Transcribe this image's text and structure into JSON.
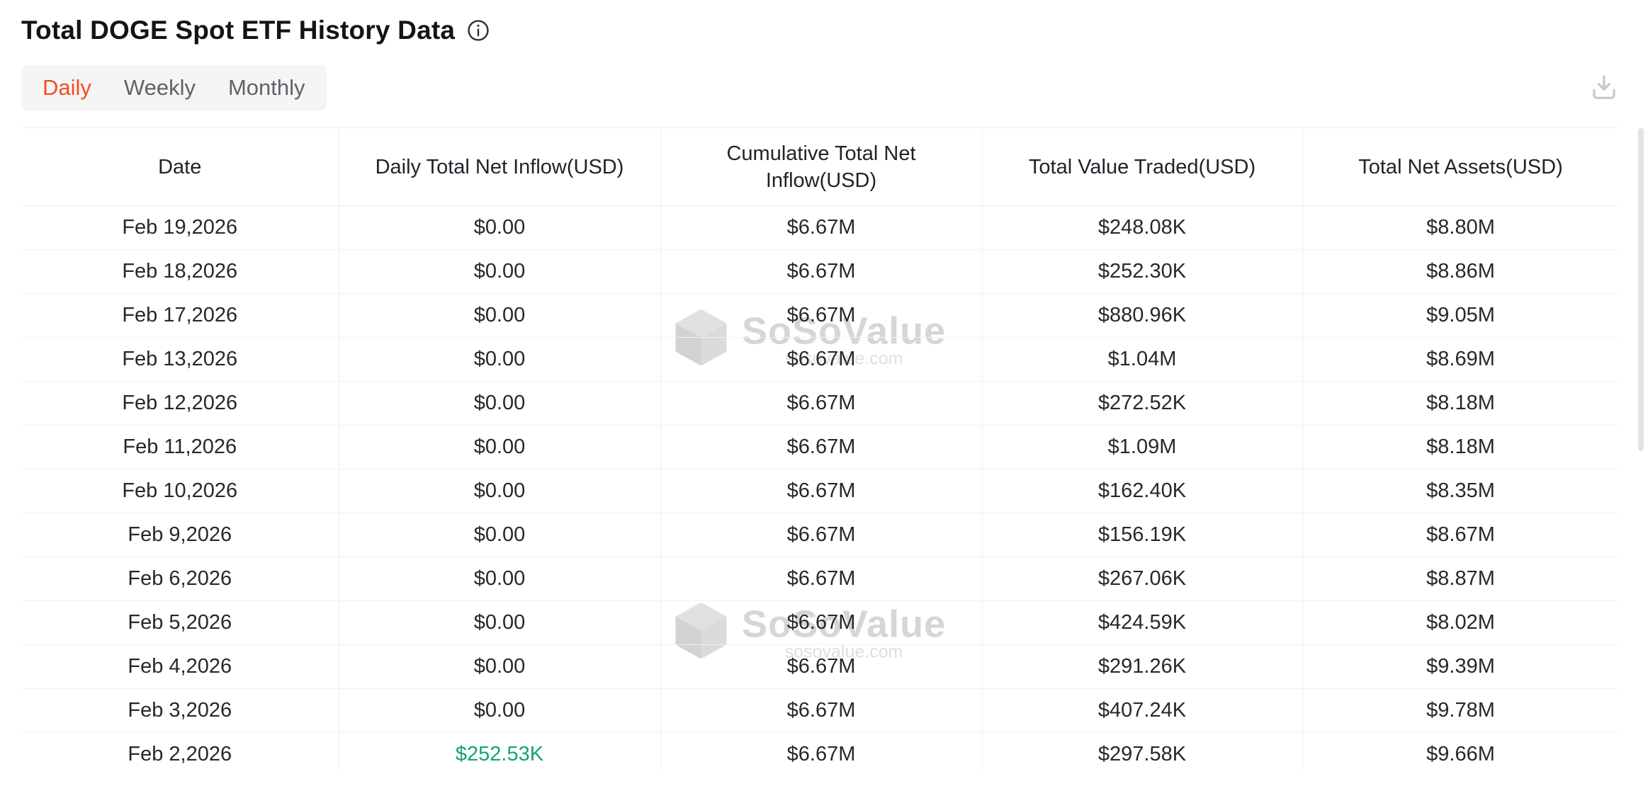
{
  "header": {
    "title": "Total DOGE Spot ETF History Data",
    "tabs": [
      {
        "label": "Daily",
        "active": true
      },
      {
        "label": "Weekly",
        "active": false
      },
      {
        "label": "Monthly",
        "active": false
      }
    ]
  },
  "icons": {
    "info": "info-icon",
    "download": "download-icon",
    "watermark_cube": "sosovalue-cube-icon"
  },
  "colors": {
    "accent": "#f04e23",
    "positive": "#15a470",
    "watermark": "#d3d3d5"
  },
  "watermark": {
    "brand": "SoSoValue",
    "domain": "sosovalue.com"
  },
  "table": {
    "columns": [
      "Date",
      "Daily Total Net Inflow(USD)",
      "Cumulative Total Net Inflow(USD)",
      "Total Value Traded(USD)",
      "Total Net Assets(USD)"
    ],
    "rows": [
      {
        "date": "Feb 19,2026",
        "daily_inflow": "$0.00",
        "daily_inflow_positive": false,
        "cumulative_inflow": "$6.67M",
        "value_traded": "$248.08K",
        "net_assets": "$8.80M"
      },
      {
        "date": "Feb 18,2026",
        "daily_inflow": "$0.00",
        "daily_inflow_positive": false,
        "cumulative_inflow": "$6.67M",
        "value_traded": "$252.30K",
        "net_assets": "$8.86M"
      },
      {
        "date": "Feb 17,2026",
        "daily_inflow": "$0.00",
        "daily_inflow_positive": false,
        "cumulative_inflow": "$6.67M",
        "value_traded": "$880.96K",
        "net_assets": "$9.05M"
      },
      {
        "date": "Feb 13,2026",
        "daily_inflow": "$0.00",
        "daily_inflow_positive": false,
        "cumulative_inflow": "$6.67M",
        "value_traded": "$1.04M",
        "net_assets": "$8.69M"
      },
      {
        "date": "Feb 12,2026",
        "daily_inflow": "$0.00",
        "daily_inflow_positive": false,
        "cumulative_inflow": "$6.67M",
        "value_traded": "$272.52K",
        "net_assets": "$8.18M"
      },
      {
        "date": "Feb 11,2026",
        "daily_inflow": "$0.00",
        "daily_inflow_positive": false,
        "cumulative_inflow": "$6.67M",
        "value_traded": "$1.09M",
        "net_assets": "$8.18M"
      },
      {
        "date": "Feb 10,2026",
        "daily_inflow": "$0.00",
        "daily_inflow_positive": false,
        "cumulative_inflow": "$6.67M",
        "value_traded": "$162.40K",
        "net_assets": "$8.35M"
      },
      {
        "date": "Feb 9,2026",
        "daily_inflow": "$0.00",
        "daily_inflow_positive": false,
        "cumulative_inflow": "$6.67M",
        "value_traded": "$156.19K",
        "net_assets": "$8.67M"
      },
      {
        "date": "Feb 6,2026",
        "daily_inflow": "$0.00",
        "daily_inflow_positive": false,
        "cumulative_inflow": "$6.67M",
        "value_traded": "$267.06K",
        "net_assets": "$8.87M"
      },
      {
        "date": "Feb 5,2026",
        "daily_inflow": "$0.00",
        "daily_inflow_positive": false,
        "cumulative_inflow": "$6.67M",
        "value_traded": "$424.59K",
        "net_assets": "$8.02M"
      },
      {
        "date": "Feb 4,2026",
        "daily_inflow": "$0.00",
        "daily_inflow_positive": false,
        "cumulative_inflow": "$6.67M",
        "value_traded": "$291.26K",
        "net_assets": "$9.39M"
      },
      {
        "date": "Feb 3,2026",
        "daily_inflow": "$0.00",
        "daily_inflow_positive": false,
        "cumulative_inflow": "$6.67M",
        "value_traded": "$407.24K",
        "net_assets": "$9.78M"
      },
      {
        "date": "Feb 2,2026",
        "daily_inflow": "$252.53K",
        "daily_inflow_positive": true,
        "cumulative_inflow": "$6.67M",
        "value_traded": "$297.58K",
        "net_assets": "$9.66M"
      }
    ]
  }
}
